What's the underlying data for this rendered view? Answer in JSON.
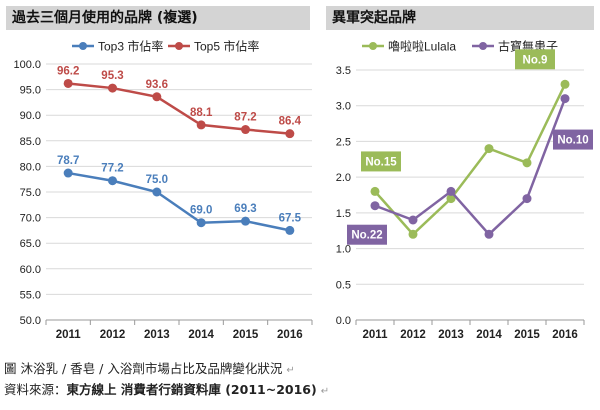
{
  "figure": {
    "caption_prefix": "圖",
    "caption_text": "沐浴乳 / 香皂 / 入浴劑市場占比及品牌變化狀況",
    "return_mark": "↵",
    "source_label": "資料來源：",
    "source_text": "東方線上 消費者行銷資料庫 (2011~2016)"
  },
  "colors": {
    "top3": "#4a7ebb",
    "top5": "#be4b48",
    "lulala": "#9bbb59",
    "gubao": "#8064a2",
    "grid": "#d9d9d9",
    "title_bg": "#d4d4d4"
  },
  "chart_data": [
    {
      "type": "line",
      "title": "過去三個月使用的品牌 (複選)",
      "categories": [
        "2011",
        "2012",
        "2013",
        "2014",
        "2015",
        "2016"
      ],
      "series": [
        {
          "name": "Top3 市佔率",
          "values": [
            78.7,
            77.2,
            75.0,
            69.0,
            69.3,
            67.5
          ],
          "labels": [
            "78.7",
            "77.2",
            "75.0",
            "69.0",
            "69.3",
            "67.5"
          ]
        },
        {
          "name": "Top5 市佔率",
          "values": [
            96.2,
            95.3,
            93.6,
            88.1,
            87.2,
            86.4
          ],
          "labels": [
            "96.2",
            "95.3",
            "93.6",
            "88.1",
            "87.2",
            "86.4"
          ]
        }
      ],
      "ylim": [
        50,
        100
      ],
      "yticks": [
        "50.0",
        "55.0",
        "60.0",
        "65.0",
        "70.0",
        "75.0",
        "80.0",
        "85.0",
        "90.0",
        "95.0",
        "100.0"
      ],
      "xlabel": "",
      "ylabel": "",
      "grid": true,
      "legend": "top"
    },
    {
      "type": "line",
      "title": "異軍突起品牌",
      "categories": [
        "2011",
        "2012",
        "2013",
        "2014",
        "2015",
        "2016"
      ],
      "series": [
        {
          "name": "嚕啦啦Lulala",
          "values": [
            1.8,
            1.2,
            1.7,
            2.4,
            2.2,
            3.3
          ]
        },
        {
          "name": "古寶無患子",
          "values": [
            1.6,
            1.4,
            1.8,
            1.2,
            1.7,
            3.1
          ]
        }
      ],
      "ylim": [
        0,
        3.5
      ],
      "yticks": [
        "0.0",
        "0.5",
        "1.0",
        "1.5",
        "2.0",
        "2.5",
        "3.0",
        "3.5"
      ],
      "annotations": [
        {
          "text": "No.15",
          "series": 0,
          "index": 0
        },
        {
          "text": "No.22",
          "series": 1,
          "index": 0
        },
        {
          "text": "No.9",
          "series": 0,
          "index": 5
        },
        {
          "text": "No.10",
          "series": 1,
          "index": 5
        }
      ],
      "xlabel": "",
      "ylabel": "",
      "grid": true,
      "legend": "top"
    }
  ]
}
